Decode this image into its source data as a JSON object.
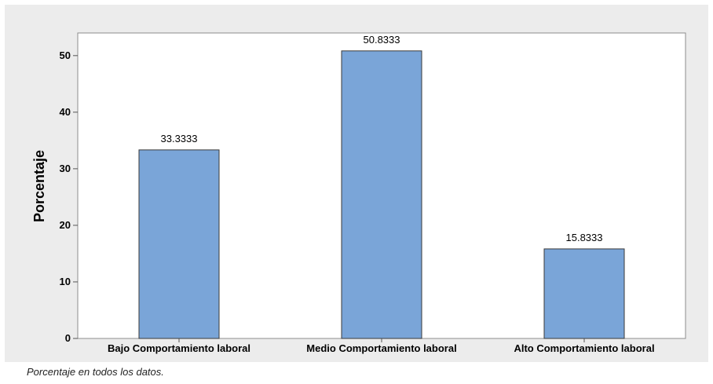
{
  "chart_data": {
    "type": "bar",
    "categories": [
      "Bajo Comportamiento laboral",
      "Medio Comportamiento laboral",
      "Alto Comportamiento laboral"
    ],
    "values": [
      33.3333,
      50.8333,
      15.8333
    ],
    "data_labels": [
      "33.3333",
      "50.8333",
      "15.8333"
    ],
    "title": "",
    "xlabel": "",
    "ylabel": "Porcentaje",
    "ylim": [
      0,
      54
    ],
    "yticks": [
      0,
      10,
      20,
      30,
      40,
      50
    ],
    "grid": false,
    "bar_color": "#7aa5d8",
    "bar_edge_color": "#3a3a3a"
  },
  "caption": "Porcentaje en todos los datos."
}
